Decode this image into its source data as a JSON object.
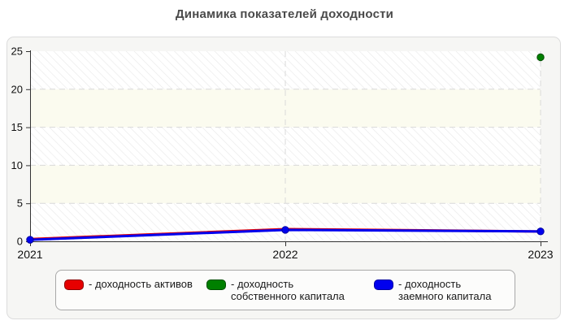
{
  "title": "Динамика показателей доходности",
  "chart_data": {
    "type": "line",
    "x": [
      2021,
      2022,
      2023
    ],
    "x_tick_labels": [
      "2021",
      "2022",
      "2023"
    ],
    "y_ticks": [
      0,
      5,
      10,
      15,
      20,
      25
    ],
    "ylim": [
      0,
      25
    ],
    "grid": {
      "horizontal_dashed_every": 5,
      "vertical_dashed_at_years": [
        2022,
        2023
      ],
      "background_bands": "alternating hatched/ivory every 5 units"
    },
    "legend_position": "bottom",
    "series": [
      {
        "id": "roa",
        "name": "доходность активов",
        "color": "#e60000",
        "marker_stroke": "#8b0000",
        "values": [
          0.3,
          1.6,
          1.3
        ],
        "marker": false
      },
      {
        "id": "roe",
        "name": "доходность собственного капитала",
        "color": "#008000",
        "marker_stroke": "#004d00",
        "values": [
          null,
          null,
          24.2
        ],
        "marker": true
      },
      {
        "id": "rod",
        "name": "доходность заемного капитала",
        "color": "#0000ee",
        "marker_stroke": "#0000a0",
        "values": [
          0.2,
          1.5,
          1.3
        ],
        "marker": true
      }
    ]
  },
  "legend": {
    "items": [
      {
        "swatch_color": "#e60000",
        "swatch_border": "#8b0000",
        "text": "- доходность активов"
      },
      {
        "swatch_color": "#008000",
        "swatch_border": "#004d00",
        "text": "- доходность собственного капитала"
      },
      {
        "swatch_color": "#0000ee",
        "swatch_border": "#0000a0",
        "text": "- доходность заемного капитала"
      }
    ]
  },
  "colors": {
    "title_text": "#4a4a4a",
    "panel_background": "#f6f6f4",
    "panel_border": "#dcdcdc",
    "plot_band_ivory": "#fbfbef",
    "plot_hatch_line": "#e9e9e9",
    "gridline": "#d9d9d9",
    "axis_line": "#333333",
    "axis_text": "#111111"
  }
}
